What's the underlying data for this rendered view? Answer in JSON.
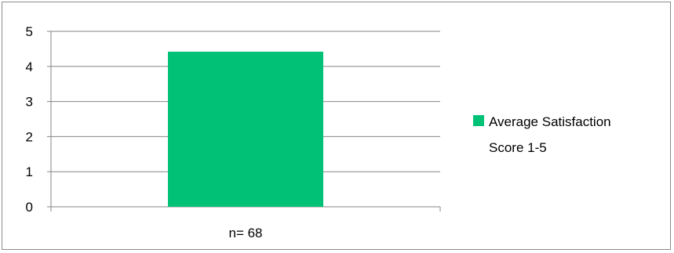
{
  "chart_data": {
    "type": "bar",
    "categories": [
      "n= 68"
    ],
    "series": [
      {
        "name": "Average Satisfaction Score 1-5",
        "values": [
          4.42
        ],
        "color": "#00c176"
      }
    ],
    "yticks": [
      "0",
      "1",
      "2",
      "3",
      "4",
      "5"
    ],
    "ylim": [
      0,
      5
    ],
    "grid": true,
    "legend": {
      "placement": "right",
      "lines": [
        "Average Satisfaction",
        "Score 1-5"
      ]
    },
    "title": "",
    "xlabel": "",
    "ylabel": ""
  }
}
